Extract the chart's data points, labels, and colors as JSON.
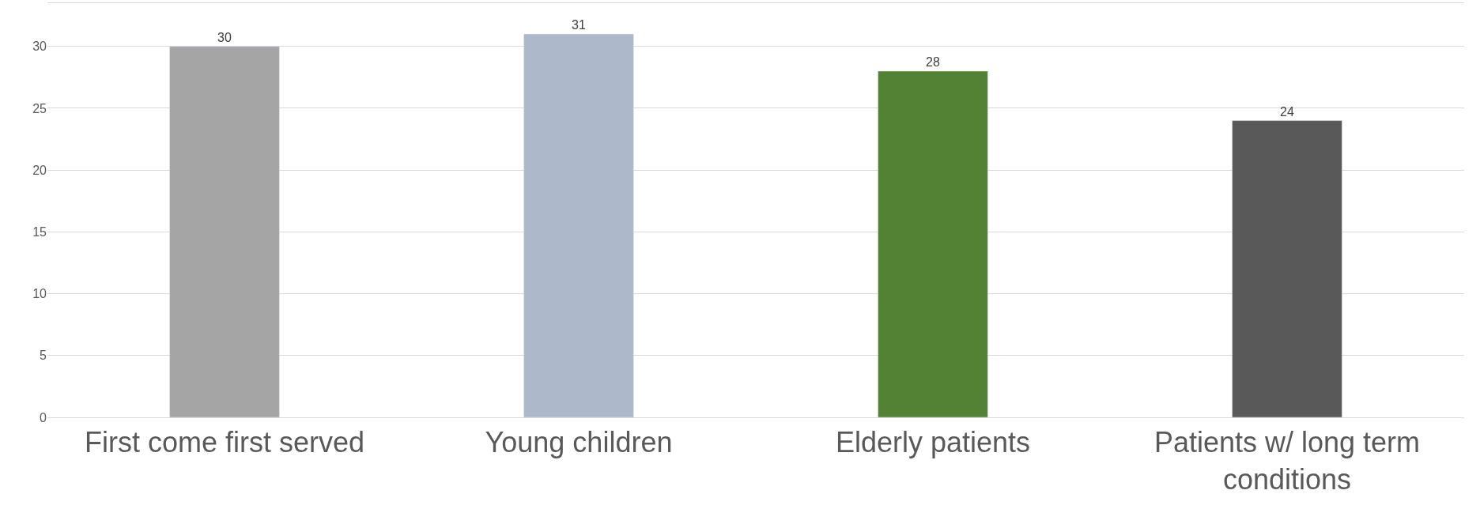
{
  "chart_data": {
    "type": "bar",
    "categories": [
      "First come first served",
      "Young children",
      "Elderly patients",
      "Patients w/ long term conditions"
    ],
    "values": [
      30,
      31,
      28,
      24
    ],
    "colors": [
      "#a5a5a5",
      "#adb9ca",
      "#548235",
      "#595959"
    ],
    "ylim": [
      0,
      33.5
    ],
    "yticks": [
      0,
      5,
      10,
      15,
      20,
      25,
      30
    ],
    "grid": "y",
    "data_labels": true
  }
}
